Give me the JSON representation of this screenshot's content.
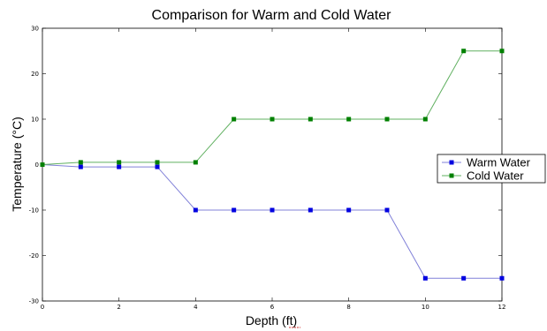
{
  "chart_data": {
    "type": "line",
    "title": "Comparison for Warm and Cold Water",
    "xlabel_prefix": "Depth (",
    "xlabel_unit": "ft",
    "xlabel_suffix": ")",
    "ylabel": "Temperature (°C)",
    "xlim": [
      0,
      12
    ],
    "ylim": [
      -30,
      30
    ],
    "xticks": [
      0,
      2,
      4,
      6,
      8,
      10,
      12
    ],
    "yticks": [
      -30,
      -20,
      -10,
      0,
      10,
      20,
      30
    ],
    "grid": false,
    "legend_position": "right",
    "x": [
      0,
      1,
      2,
      3,
      4,
      5,
      6,
      7,
      8,
      9,
      10,
      11,
      12
    ],
    "series": [
      {
        "name": "Warm Water",
        "color": "#0000e0",
        "line_color": "#8080d8",
        "values": [
          0,
          -0.5,
          -0.5,
          -0.5,
          -10,
          -10,
          -10,
          -10,
          -10,
          -10,
          -25,
          -25,
          -25
        ]
      },
      {
        "name": "Cold Water",
        "color": "#008000",
        "line_color": "#60b060",
        "values": [
          0,
          0.5,
          0.5,
          0.5,
          0.5,
          10,
          10,
          10,
          10,
          10,
          10,
          25,
          25
        ]
      }
    ]
  }
}
